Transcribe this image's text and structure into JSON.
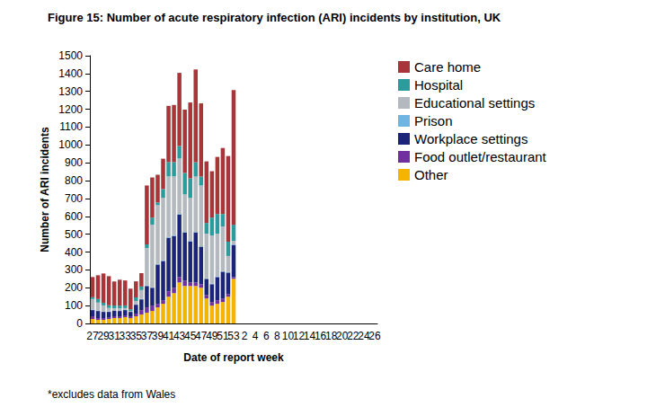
{
  "chart_data": {
    "type": "bar",
    "title": "Figure 15: Number of acute respiratory infection (ARI) incidents by institution, UK",
    "x_label": "Date of report week",
    "y_label": "Number of ARI incidents",
    "note": "*excludes data from Wales",
    "categories": [
      "27",
      null,
      "29",
      null,
      "31",
      null,
      "33",
      null,
      "35",
      null,
      "37",
      null,
      "39",
      null,
      "41",
      null,
      "43",
      null,
      "45",
      null,
      "47",
      null,
      "49",
      null,
      "51",
      null,
      "53",
      null,
      "2",
      null,
      "4",
      null,
      "6",
      null,
      "8",
      null,
      "10",
      null,
      "12",
      null,
      "14",
      null,
      "16",
      null,
      "18",
      null,
      "20",
      null,
      "22",
      null,
      "24",
      null,
      "26"
    ],
    "series": [
      {
        "name": "Other",
        "color": "#f5b400",
        "values": [
          25,
          20,
          20,
          25,
          30,
          30,
          35,
          30,
          40,
          50,
          60,
          70,
          90,
          110,
          150,
          170,
          230,
          210,
          210,
          210,
          200,
          140,
          100,
          110,
          120,
          150,
          250,
          null,
          null,
          null,
          null,
          null,
          null,
          null,
          null,
          null,
          null,
          null,
          null,
          null,
          null,
          null,
          null,
          null,
          null,
          null,
          null,
          null,
          null,
          null,
          null,
          null,
          null
        ]
      },
      {
        "name": "Food outlet/restaurant",
        "color": "#7030a0",
        "values": [
          15,
          10,
          10,
          10,
          10,
          10,
          10,
          10,
          15,
          25,
          30,
          30,
          20,
          20,
          30,
          30,
          30,
          30,
          20,
          20,
          20,
          20,
          20,
          20,
          20,
          15,
          10,
          null,
          null,
          null,
          null,
          null,
          null,
          null,
          null,
          null,
          null,
          null,
          null,
          null,
          null,
          null,
          null,
          null,
          null,
          null,
          null,
          null,
          null,
          null,
          null,
          null,
          null
        ]
      },
      {
        "name": "Workplace settings",
        "color": "#1c2479",
        "values": [
          35,
          40,
          35,
          30,
          30,
          30,
          30,
          25,
          50,
          60,
          120,
          100,
          220,
          220,
          300,
          290,
          350,
          270,
          230,
          280,
          210,
          90,
          100,
          130,
          150,
          120,
          180,
          null,
          null,
          null,
          null,
          null,
          null,
          null,
          null,
          null,
          null,
          null,
          null,
          null,
          null,
          null,
          null,
          null,
          null,
          null,
          null,
          null,
          null,
          null,
          null,
          null,
          null
        ]
      },
      {
        "name": "Prison",
        "color": "#6fb5e3",
        "values": [
          2,
          2,
          1,
          2,
          1,
          0,
          1,
          0,
          1,
          2,
          3,
          3,
          3,
          3,
          4,
          4,
          4,
          3,
          3,
          3,
          3,
          3,
          3,
          3,
          3,
          3,
          3,
          null,
          null,
          null,
          null,
          null,
          null,
          null,
          null,
          null,
          null,
          null,
          null,
          null,
          null,
          null,
          null,
          null,
          null,
          null,
          null,
          null,
          null,
          null,
          null,
          null,
          null
        ]
      },
      {
        "name": "Educational settings",
        "color": "#b3b9bf",
        "values": [
          60,
          45,
          35,
          20,
          15,
          15,
          10,
          5,
          20,
          50,
          210,
          350,
          330,
          350,
          340,
          330,
          310,
          210,
          240,
          310,
          340,
          250,
          270,
          240,
          250,
          90,
          20,
          null,
          null,
          null,
          null,
          null,
          null,
          null,
          null,
          null,
          null,
          null,
          null,
          null,
          null,
          null,
          null,
          null,
          null,
          null,
          null,
          null,
          null,
          null,
          null,
          null,
          null
        ]
      },
      {
        "name": "Hospital",
        "color": "#2b9b9b",
        "values": [
          10,
          20,
          15,
          15,
          15,
          15,
          15,
          10,
          20,
          20,
          20,
          40,
          15,
          50,
          80,
          80,
          70,
          120,
          110,
          80,
          50,
          60,
          100,
          110,
          70,
          80,
          90,
          null,
          null,
          null,
          null,
          null,
          null,
          null,
          null,
          null,
          null,
          null,
          null,
          null,
          null,
          null,
          null,
          null,
          null,
          null,
          null,
          null,
          null,
          null,
          null,
          null,
          null
        ]
      },
      {
        "name": "Care home",
        "color": "#a8353a",
        "values": [
          113,
          133,
          164,
          163,
          134,
          145,
          140,
          115,
          90,
          75,
          330,
          225,
          155,
          170,
          315,
          320,
          410,
          355,
          425,
          520,
          410,
          345,
          260,
          320,
          370,
          480,
          755,
          null,
          null,
          null,
          null,
          null,
          null,
          null,
          null,
          null,
          null,
          null,
          null,
          null,
          null,
          null,
          null,
          null,
          null,
          null,
          null,
          null,
          null,
          null,
          null,
          null,
          null
        ]
      }
    ],
    "ylim": [
      0,
      1500
    ],
    "yticks": [
      0,
      100,
      200,
      300,
      400,
      500,
      600,
      700,
      800,
      900,
      1000,
      1100,
      1200,
      1300,
      1400,
      1500
    ],
    "stacked": true,
    "grid": false,
    "legend": "right"
  }
}
